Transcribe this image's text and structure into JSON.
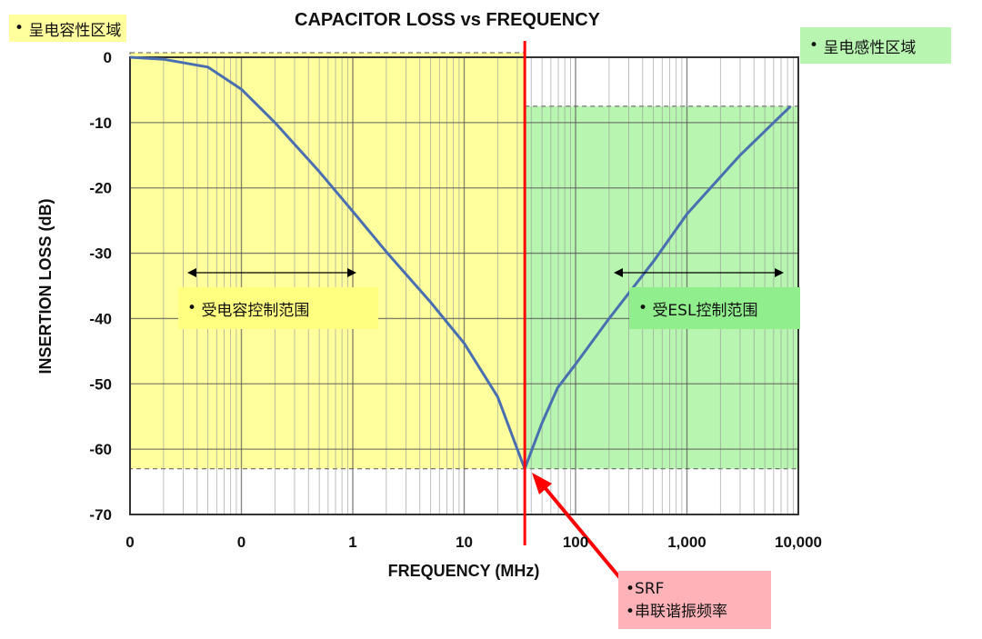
{
  "chart_data": {
    "type": "line",
    "title": "CAPACITOR LOSS vs FREQUENCY",
    "xlabel": "FREQUENCY (MHz)",
    "ylabel": "INSERTION LOSS (dB)",
    "x_scale": "log",
    "xlim": [
      0.01,
      10000
    ],
    "ylim": [
      -70,
      0
    ],
    "grid": true,
    "x_ticks": [
      0.01,
      0.1,
      1,
      10,
      100,
      1000,
      10000
    ],
    "x_tick_labels": [
      "0",
      "0",
      "1",
      "10",
      "100",
      "1,000",
      "10,000"
    ],
    "y_ticks": [
      0,
      -10,
      -20,
      -30,
      -40,
      -50,
      -60,
      -70
    ],
    "y_tick_labels": [
      "0",
      "-10",
      "-20",
      "-30",
      "-40",
      "-50",
      "-60",
      "-70"
    ],
    "series": [
      {
        "color": "#4a6fb0",
        "x": [
          0.01,
          0.02,
          0.05,
          0.1,
          0.2,
          0.5,
          1,
          2,
          5,
          10,
          20,
          30,
          35,
          50,
          69,
          100,
          200,
          513,
          1000,
          3000,
          8500
        ],
        "y": [
          0,
          -0.3,
          -1.5,
          -4.9,
          -10,
          -17.5,
          -23.6,
          -29.8,
          -37.5,
          -43.8,
          -52,
          -60,
          -63,
          -56,
          -50.6,
          -47,
          -40,
          -31,
          -24,
          -15,
          -7.5
        ]
      }
    ],
    "srf_mhz": 35,
    "annotations": {
      "capacitive_region": "呈电容性区域",
      "inductive_region": "呈电感性区域",
      "capacitance_range": "受电容控制范围",
      "esl_range": "受ESL控制范围",
      "srf_line1": "SRF",
      "srf_line2": "串联谐振频率"
    },
    "colors": {
      "capacitive": "#ffff9e",
      "inductive": "#b8f5b0",
      "srf": "#ff0000",
      "srf_box": "#ffb3b8"
    }
  }
}
